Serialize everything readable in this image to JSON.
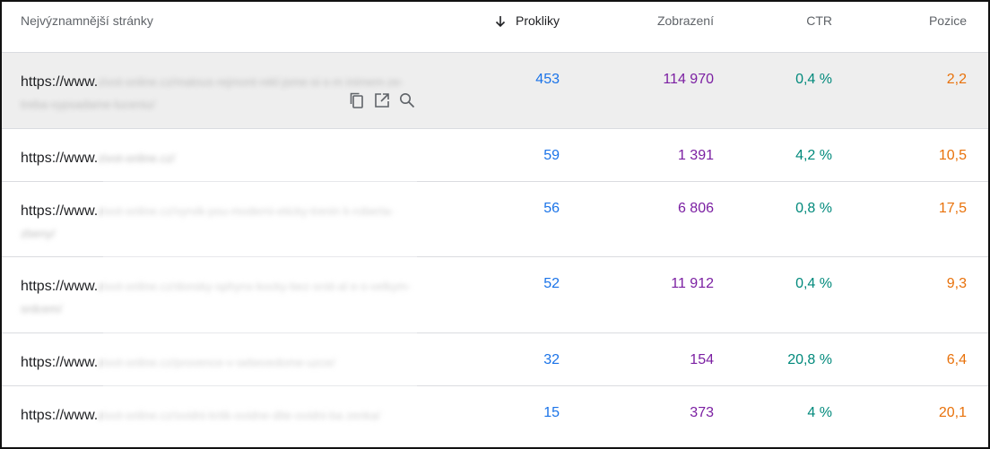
{
  "table": {
    "headers": {
      "page": "Nejvýznamnější stránky",
      "clicks": "Prokliky",
      "impressions": "Zobrazení",
      "ctr": "CTR",
      "position": "Pozice"
    },
    "sort": {
      "column": "clicks",
      "direction": "descending",
      "icon": "arrow-down-icon"
    },
    "rows": [
      {
        "url_prefix": "https://www.",
        "url_rest": "zivot-online.cz/matous-rejmont-rekl-jsme-si-s-m inimem-ze-treba-vypsadame-luceniu/",
        "clicks": "453",
        "impressions": "114 970",
        "ctr": "0,4 %",
        "position": "2,2",
        "hovered": true,
        "actions": [
          "copy-icon",
          "open-in-new-icon",
          "search-icon"
        ]
      },
      {
        "url_prefix": "https://www.",
        "url_rest": "zivot-online.cz/",
        "clicks": "59",
        "impressions": "1 391",
        "ctr": "4,2 %",
        "position": "10,5"
      },
      {
        "url_prefix": "https://www.",
        "url_rest": "zivot-online.cz/vyrvik-psu-moderni-eticky-trenin k-roberta-zbeny/",
        "clicks": "56",
        "impressions": "6 806",
        "ctr": "0,8 %",
        "position": "17,5"
      },
      {
        "url_prefix": "https://www.",
        "url_rest": "zivot-online.cz/donsky-sphynx-kocky-bez-srsti-al e-s-velkym-srdcem/",
        "clicks": "52",
        "impressions": "11 912",
        "ctr": "0,4 %",
        "position": "9,3"
      },
      {
        "url_prefix": "https://www.",
        "url_rest": "zivot-online.cz/provence-v-sebevedome-uzce/",
        "clicks": "32",
        "impressions": "154",
        "ctr": "20,8 %",
        "position": "6,4"
      },
      {
        "url_prefix": "https://www.",
        "url_rest": "zivot-online.cz/ovidni-krtik-ovidne-dite-ovidni-ba zenka/",
        "clicks": "15",
        "impressions": "373",
        "ctr": "4 %",
        "position": "20,1"
      }
    ]
  },
  "colors": {
    "clicks": "#1a73e8",
    "impressions": "#7b1fa2",
    "ctr": "#00897b",
    "position": "#e8710a",
    "hover_row": "#eeeeee",
    "divider": "#dadce0"
  }
}
